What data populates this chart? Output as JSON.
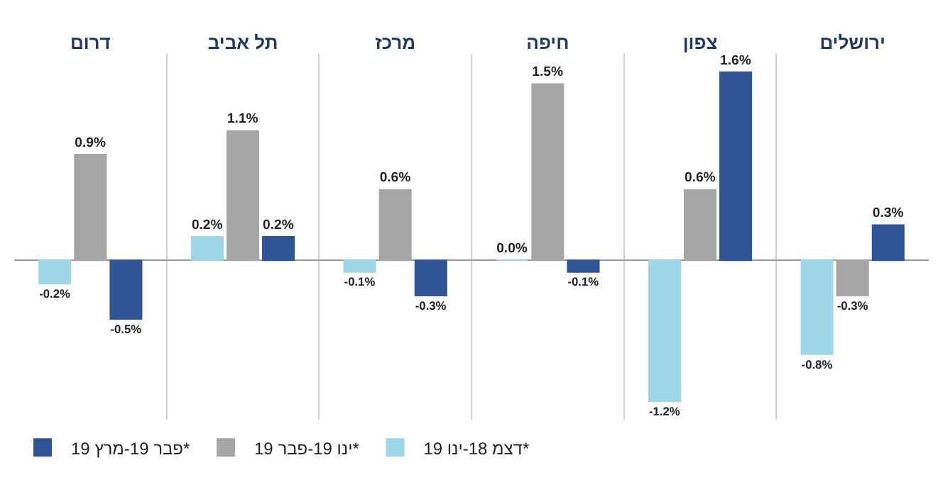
{
  "chart_data": {
    "type": "bar",
    "categories": [
      "דרום",
      "תל אביב",
      "מרכז",
      "חיפה",
      "צפון",
      "ירושלים"
    ],
    "series": [
      {
        "name": "דצמ 18-ינו 19*",
        "color": "#9dd6e8",
        "values": [
          -0.2,
          0.2,
          -0.1,
          0.0,
          -1.2,
          -0.8
        ],
        "value_labels": [
          "-0.2%",
          "0.2%",
          "-0.1%",
          "0.0%",
          "-1.2%",
          "-0.8%"
        ]
      },
      {
        "name": "ינו 19-פבר 19*",
        "color": "#a6a6a6",
        "values": [
          0.9,
          1.1,
          0.6,
          1.5,
          0.6,
          -0.3
        ],
        "value_labels": [
          "0.9%",
          "1.1%",
          "0.6%",
          "1.5%",
          "0.6%",
          "-0.3%"
        ]
      },
      {
        "name": "פבר 19-מרץ 19*",
        "color": "#2f5597",
        "values": [
          -0.5,
          0.2,
          -0.3,
          -0.1,
          1.6,
          0.3
        ],
        "value_labels": [
          "-0.5%",
          "0.2%",
          "-0.3%",
          "-0.1%",
          "1.6%",
          "0.3%"
        ]
      }
    ],
    "grid": "x",
    "legend": "bottom left"
  }
}
